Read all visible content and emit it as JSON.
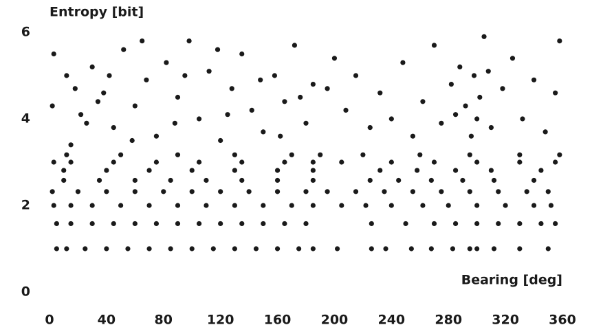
{
  "chart_data": {
    "type": "scatter",
    "y_label": "Entropy [bit]",
    "x_label": "Bearing [deg]",
    "color": "#1a1a1a",
    "xlim": [
      0,
      360
    ],
    "xticks": [
      0,
      40,
      80,
      120,
      160,
      200,
      240,
      280,
      320,
      360
    ],
    "ylim": [
      0,
      6
    ],
    "yticks": [
      0,
      2,
      4,
      6
    ],
    "x": [
      5,
      12,
      25,
      40,
      55,
      70,
      85,
      100,
      115,
      130,
      145,
      160,
      175,
      185,
      202,
      226,
      236,
      254,
      268,
      283,
      295,
      300,
      312,
      330,
      350,
      5,
      15,
      30,
      45,
      60,
      75,
      90,
      105,
      120,
      135,
      150,
      165,
      180,
      226,
      250,
      270,
      285,
      300,
      315,
      330,
      345,
      355,
      3,
      15,
      30,
      50,
      70,
      90,
      110,
      130,
      150,
      170,
      185,
      205,
      222,
      240,
      262,
      280,
      300,
      320,
      340,
      352,
      2,
      20,
      40,
      60,
      80,
      100,
      120,
      140,
      160,
      180,
      195,
      215,
      235,
      255,
      275,
      295,
      315,
      335,
      350,
      10,
      35,
      60,
      85,
      110,
      135,
      160,
      185,
      225,
      245,
      268,
      290,
      312,
      340,
      10,
      40,
      70,
      100,
      130,
      160,
      185,
      232,
      258,
      285,
      310,
      345,
      3,
      15,
      45,
      75,
      105,
      135,
      165,
      185,
      205,
      240,
      270,
      300,
      330,
      355,
      12,
      50,
      90,
      130,
      170,
      190,
      220,
      260,
      295,
      330,
      358,
      15,
      22,
      30,
      38,
      45,
      52,
      60,
      68,
      75,
      82,
      90,
      98,
      105,
      112,
      120,
      128,
      135,
      142,
      150,
      158,
      165,
      172,
      180,
      185,
      12,
      18,
      26,
      34,
      42,
      58,
      65,
      88,
      95,
      118,
      125,
      148,
      162,
      176,
      3,
      2,
      195,
      200,
      208,
      215,
      225,
      232,
      240,
      248,
      255,
      262,
      270,
      275,
      282,
      288,
      292,
      298,
      302,
      305,
      310,
      318,
      325,
      332,
      340,
      348,
      355,
      358,
      296,
      285,
      300,
      308
    ],
    "y": [
      1,
      1,
      1,
      1,
      1,
      1,
      1,
      1,
      1,
      1,
      1,
      1,
      1,
      1,
      1,
      1,
      1,
      1,
      1,
      1,
      1,
      1,
      1,
      1,
      1,
      1.58,
      1.58,
      1.58,
      1.58,
      1.58,
      1.58,
      1.58,
      1.58,
      1.58,
      1.58,
      1.58,
      1.58,
      1.58,
      1.58,
      1.58,
      1.58,
      1.58,
      1.58,
      1.58,
      1.58,
      1.58,
      1.58,
      2,
      2,
      2,
      2,
      2,
      2,
      2,
      2,
      2,
      2,
      2,
      2,
      2,
      2,
      2,
      2,
      2,
      2,
      2,
      2,
      2.32,
      2.32,
      2.32,
      2.32,
      2.32,
      2.32,
      2.32,
      2.32,
      2.32,
      2.32,
      2.32,
      2.32,
      2.32,
      2.32,
      2.32,
      2.32,
      2.32,
      2.32,
      2.32,
      2.58,
      2.58,
      2.58,
      2.58,
      2.58,
      2.58,
      2.58,
      2.58,
      2.58,
      2.58,
      2.58,
      2.58,
      2.58,
      2.58,
      2.81,
      2.81,
      2.81,
      2.81,
      2.81,
      2.81,
      2.81,
      2.81,
      2.81,
      2.81,
      2.81,
      2.81,
      3,
      3,
      3,
      3,
      3,
      3,
      3,
      3,
      3,
      3,
      3,
      3,
      3,
      3,
      3.17,
      3.17,
      3.17,
      3.17,
      3.17,
      3.17,
      3.17,
      3.17,
      3.17,
      3.17,
      3.17,
      3.4,
      4.1,
      5.2,
      4.6,
      3.8,
      5.6,
      4.3,
      4.9,
      3.6,
      5.3,
      4.5,
      5.8,
      4.0,
      5.1,
      3.5,
      4.7,
      5.5,
      4.2,
      3.7,
      5.0,
      4.4,
      5.7,
      3.9,
      4.8,
      5.0,
      4.7,
      3.9,
      4.4,
      5.0,
      3.5,
      5.8,
      3.9,
      5.0,
      5.6,
      4.1,
      4.9,
      3.6,
      4.5,
      5.5,
      4.3,
      4.7,
      5.4,
      4.2,
      5.0,
      3.8,
      4.6,
      4.0,
      5.3,
      3.6,
      4.4,
      5.7,
      3.9,
      4.8,
      5.2,
      4.3,
      5.0,
      4.5,
      5.9,
      3.8,
      4.7,
      5.4,
      4.0,
      4.9,
      3.7,
      4.6,
      5.8,
      3.6,
      4.1,
      4.0,
      5.1
    ]
  }
}
